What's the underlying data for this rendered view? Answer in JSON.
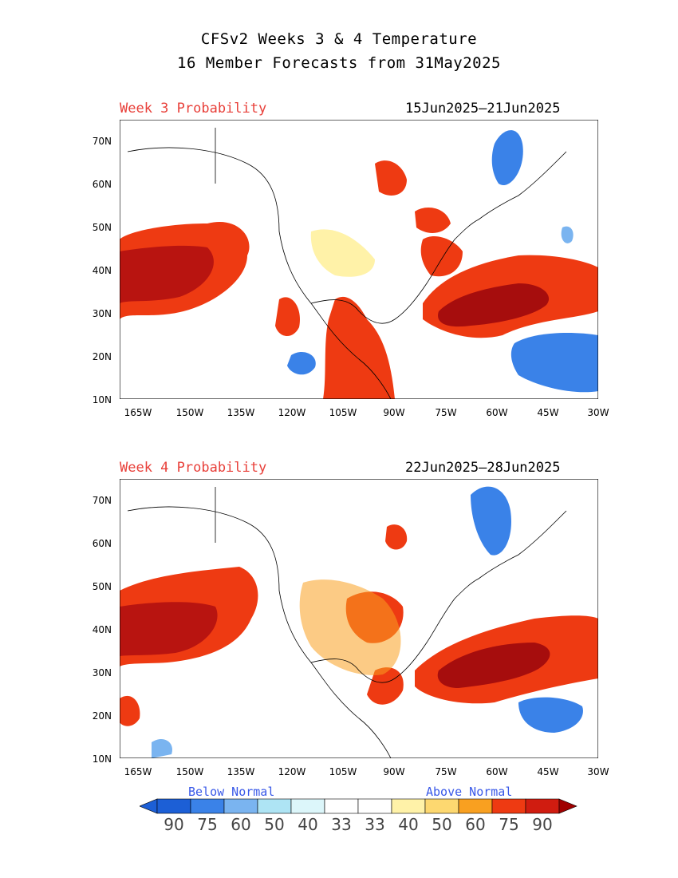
{
  "title": {
    "line1": "CFSv2 Weeks 3 & 4 Temperature",
    "line2": "16 Member Forecasts from 31May2025"
  },
  "axes": {
    "lat_labels": [
      "70N",
      "60N",
      "50N",
      "40N",
      "30N",
      "20N",
      "10N"
    ],
    "lon_labels": [
      "165W",
      "150W",
      "135W",
      "120W",
      "105W",
      "90W",
      "75W",
      "60W",
      "45W",
      "30W"
    ],
    "lat_range": [
      10,
      75
    ],
    "lon_range": [
      -170,
      -30
    ]
  },
  "panels": [
    {
      "label": "Week 3 Probability",
      "dates": "15Jun2025—21Jun2025"
    },
    {
      "label": "Week 4 Probability",
      "dates": "22Jun2025—28Jun2025"
    }
  ],
  "legend": {
    "below_label": "Below Normal",
    "above_label": "Above Normal",
    "values": [
      "90",
      "75",
      "60",
      "50",
      "40",
      "33",
      "33",
      "40",
      "50",
      "60",
      "75",
      "90"
    ],
    "colors": [
      "#1c5fd6",
      "#3a82e8",
      "#7ab4f0",
      "#aee4f4",
      "#dcf6fa",
      "#ffffff",
      "#ffffff",
      "#fff2a8",
      "#fdd870",
      "#f9a020",
      "#ee3a12",
      "#d01c10",
      "#9a0a0a"
    ],
    "arrow_left_color": "#1c5fd6",
    "arrow_right_color": "#a00000"
  }
}
